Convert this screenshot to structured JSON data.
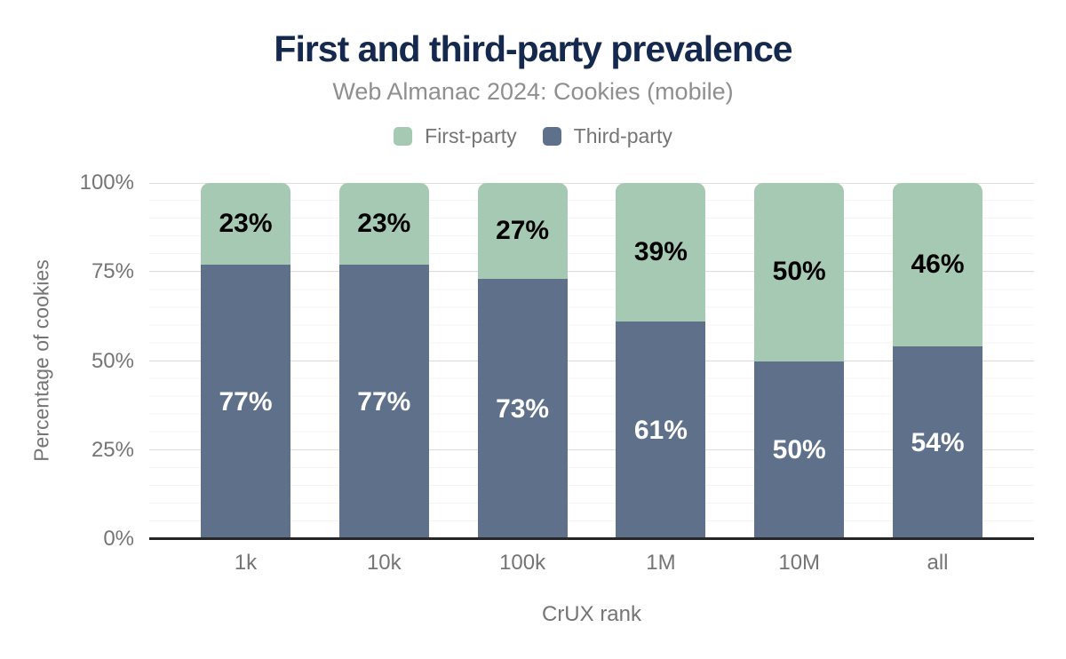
{
  "chart_data": {
    "type": "bar",
    "stacked": true,
    "title": "First and third-party prevalence",
    "subtitle": "Web Almanac 2024: Cookies (mobile)",
    "categories": [
      "1k",
      "10k",
      "100k",
      "1M",
      "10M",
      "all"
    ],
    "series": [
      {
        "name": "First-party",
        "color": "#a6c9b3",
        "label_color": "#000000",
        "values": [
          23,
          23,
          27,
          39,
          50,
          46
        ]
      },
      {
        "name": "Third-party",
        "color": "#5f708b",
        "label_color": "#ffffff",
        "values": [
          77,
          77,
          73,
          61,
          50,
          54
        ]
      }
    ],
    "xlabel": "CrUX rank",
    "ylabel": "Percentage of cookies",
    "ylim": [
      0,
      100
    ],
    "y_ticks": [
      "0%",
      "25%",
      "50%",
      "75%",
      "100%"
    ],
    "label_format": "{value}%",
    "legend_position": "top",
    "grid": "horizontal; minor every 5%, major every 25%"
  },
  "colors": {
    "title": "#15294e",
    "subtitle_text": "#8f8f8f",
    "axis_text": "#757575",
    "axis_line": "#262626",
    "gridline_major": "#dddddd",
    "gridline_minor": "#f4f4f4",
    "background": "#ffffff"
  }
}
